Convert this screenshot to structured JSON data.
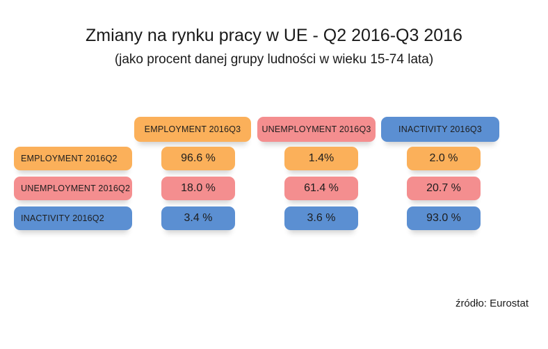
{
  "title": "Zmiany na rynku pracy w UE - Q2 2016-Q3 2016",
  "subtitle": "(jako procent danej grupy ludności w wieku 15-74 lata)",
  "source": "źródło: Eurostat",
  "colors": {
    "employment": "#fbb05a",
    "unemployment": "#f48e8f",
    "inactivity": "#5b8fd2"
  },
  "chart_data": {
    "type": "table",
    "columns": [
      "EMPLOYMENT 2016Q3",
      "UNEMPLOYMENT 2016Q3",
      "INACTIVITY 2016Q3"
    ],
    "rows": [
      {
        "label": "EMPLOYMENT 2016Q2",
        "values": [
          96.6,
          1.4,
          2.0
        ],
        "display": [
          "96.6 %",
          "1.4%",
          "2.0 %"
        ]
      },
      {
        "label": "UNEMPLOYMENT 2016Q2",
        "values": [
          18.0,
          61.4,
          20.7
        ],
        "display": [
          "18.0 %",
          "61.4 %",
          "20.7 %"
        ]
      },
      {
        "label": "INACTIVITY 2016Q2",
        "values": [
          3.4,
          3.6,
          93.0
        ],
        "display": [
          "3.4 %",
          "3.6 %",
          "93.0 %"
        ]
      }
    ]
  }
}
